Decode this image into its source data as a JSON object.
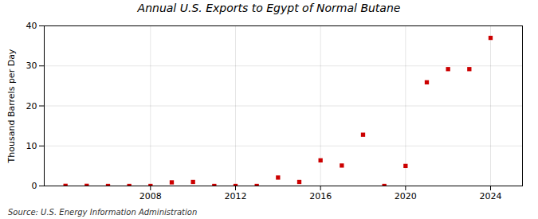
{
  "chart_data": {
    "type": "scatter",
    "title": "Annual U.S. Exports to Egypt of Normal Butane",
    "ylabel": "Thousand Barrels per Day",
    "source": "Source: U.S. Energy Information Administration",
    "x": [
      2004,
      2005,
      2006,
      2007,
      2008,
      2009,
      2010,
      2011,
      2012,
      2013,
      2014,
      2015,
      2016,
      2017,
      2018,
      2019,
      2020,
      2021,
      2022,
      2023,
      2024
    ],
    "values": [
      0.03,
      0.03,
      0.0,
      0.0,
      0.0,
      0.9,
      1.0,
      0.0,
      0.0,
      0.0,
      2.1,
      1.0,
      6.4,
      5.1,
      12.8,
      0.0,
      5.0,
      25.9,
      29.2,
      29.2,
      37.0
    ],
    "color": "#cc0000",
    "marker": "square",
    "xlim": [
      2003,
      2025.5
    ],
    "ylim": [
      0,
      40
    ],
    "xticks": [
      2008,
      2012,
      2016,
      2020,
      2024
    ],
    "yticks": [
      0,
      10,
      20,
      30,
      40
    ],
    "grid": true
  }
}
